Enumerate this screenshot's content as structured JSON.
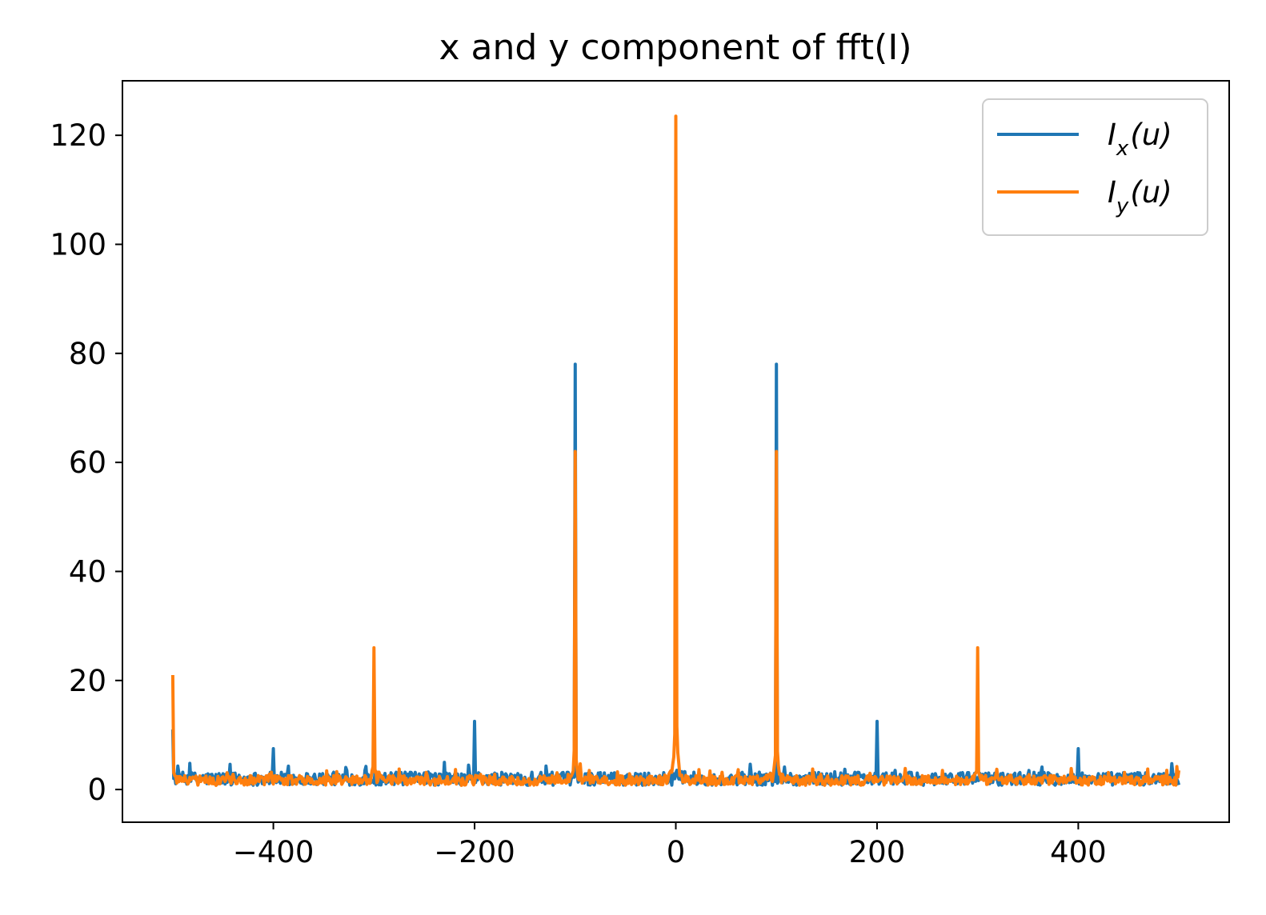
{
  "chart_data": {
    "type": "line",
    "title": "x and y component of fft(I)",
    "xlabel": "",
    "ylabel": "",
    "xlim": [
      -550,
      550
    ],
    "ylim": [
      -6,
      130
    ],
    "xticks": [
      -400,
      -200,
      0,
      200,
      400
    ],
    "xtick_labels": [
      "−400",
      "−200",
      "0",
      "200",
      "400"
    ],
    "yticks": [
      0,
      20,
      40,
      60,
      80,
      100,
      120
    ],
    "ytick_labels": [
      "0",
      "20",
      "40",
      "60",
      "80",
      "100",
      "120"
    ],
    "grid": false,
    "legend_position": "top-right",
    "series": [
      {
        "name": "I_x(u)",
        "legend_main": "I",
        "legend_sub": "x",
        "legend_tail": "(u)",
        "color": "#1f77b4",
        "baseline": 1.5,
        "noise": 1.2,
        "peaks": [
          {
            "x": -500,
            "y": 11
          },
          {
            "x": -400,
            "y": 7.5
          },
          {
            "x": -200,
            "y": 12.5
          },
          {
            "x": -100,
            "y": 78
          },
          {
            "x": 0,
            "y": 3
          },
          {
            "x": 100,
            "y": 78
          },
          {
            "x": 200,
            "y": 12.5
          },
          {
            "x": 400,
            "y": 7.5
          }
        ]
      },
      {
        "name": "I_y(u)",
        "legend_main": "I",
        "legend_sub": "y",
        "legend_tail": "(u)",
        "color": "#ff7f0e",
        "baseline": 1.3,
        "noise": 0.9,
        "peaks": [
          {
            "x": -500,
            "y": 21
          },
          {
            "x": -300,
            "y": 26
          },
          {
            "x": -100,
            "y": 62
          },
          {
            "x": 0,
            "y": 123.5
          },
          {
            "x": 100,
            "y": 62
          },
          {
            "x": 300,
            "y": 26
          },
          {
            "x": 500,
            "y": 3.5
          }
        ]
      }
    ]
  }
}
